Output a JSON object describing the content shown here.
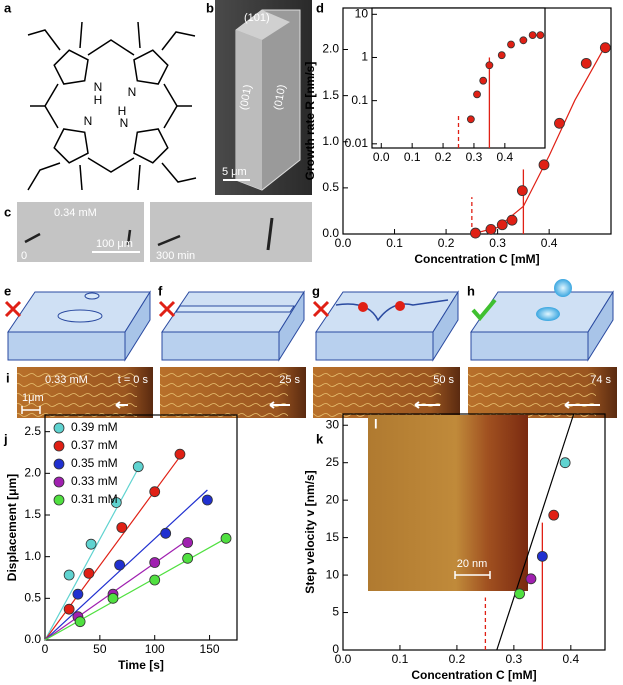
{
  "panel_labels": [
    "a",
    "b",
    "c",
    "d",
    "e",
    "f",
    "g",
    "h",
    "i",
    "j",
    "k",
    "l"
  ],
  "molecule": {
    "atoms": [
      "N",
      "H",
      "N",
      "N",
      "H",
      "N"
    ]
  },
  "sem_image": {
    "facets": [
      "(101)",
      "(001)",
      "(010)"
    ],
    "scale_bar": "5 μm"
  },
  "optical_images": {
    "concentration": "0.34 mM",
    "time_start": "0",
    "scale_bar": "100 μm",
    "time_end": "300 min"
  },
  "afm_series": {
    "concentration": "0.33 mM",
    "times": [
      "t = 0 s",
      "25 s",
      "50 s",
      "74 s"
    ],
    "scale_bar": "1μm"
  },
  "afm_inset": {
    "scale_bar": "20 nm"
  },
  "chart_data": [
    {
      "type": "scatter",
      "x_label": "Concentration C [mM]",
      "y_label": "Growth rate R [nm/s]",
      "xlim": [
        0,
        0.52
      ],
      "xticks": [
        {
          "value": 0,
          "label": "0.0"
        },
        0.1,
        0.2,
        0.3,
        0.4
      ],
      "ylim": [
        0,
        2.45
      ],
      "yticks": [
        {
          "value": 0,
          "label": "0.0"
        },
        0.5,
        {
          "value": 1,
          "label": "1.0"
        },
        1.5,
        {
          "value": 2,
          "label": "2.0"
        }
      ],
      "series": [
        {
          "color": "#e02015",
          "x": [
            0.257,
            0.287,
            0.309,
            0.328,
            0.348,
            0.39,
            0.42,
            0.472,
            0.509
          ],
          "values": [
            0.01,
            0.05,
            0.1,
            0.15,
            0.47,
            0.75,
            1.2,
            1.85,
            2.02
          ],
          "fit_x": [
            0.25,
            0.3,
            0.35,
            0.4,
            0.45,
            0.51
          ],
          "fit_values": [
            0,
            0.07,
            0.3,
            0.85,
            1.45,
            2.05
          ]
        }
      ],
      "vlines": [
        {
          "x": 0.25,
          "y": 0.4,
          "dashed": true,
          "color": "#e02015"
        },
        {
          "x": 0.35,
          "y": 0.7,
          "dashed": false,
          "color": "#e02015"
        }
      ]
    },
    {
      "type": "scatter",
      "log_y": true,
      "xlim": [
        -0.03,
        0.53
      ],
      "xticks": [
        {
          "value": 0,
          "label": "0.0"
        },
        0.1,
        0.2,
        0.3,
        0.4
      ],
      "ylim": [
        0.008,
        14
      ],
      "yticks": [
        0.01,
        0.1,
        1,
        10
      ],
      "series": [
        {
          "color": "#e02015",
          "x": [
            0.29,
            0.31,
            0.33,
            0.35,
            0.39,
            0.42,
            0.46,
            0.49,
            0.515
          ],
          "values": [
            0.037,
            0.14,
            0.29,
            0.66,
            1.13,
            2.0,
            2.5,
            3.3,
            3.3
          ]
        }
      ],
      "vlines": [
        {
          "x": 0.25,
          "y": 0.05,
          "dashed": true,
          "color": "#e02015"
        },
        {
          "x": 0.35,
          "y": 1,
          "dashed": false,
          "color": "#e02015"
        }
      ]
    },
    {
      "type": "line",
      "x_label": "Time [s]",
      "y_label": "Displacement [μm]",
      "legend": "upper-left",
      "xlim": [
        0,
        175
      ],
      "xticks": [
        0,
        50,
        100,
        150
      ],
      "ylim": [
        0,
        2.7
      ],
      "yticks": [
        {
          "value": 0,
          "label": "0.0"
        },
        0.5,
        {
          "value": 1,
          "label": "1.0"
        },
        1.5,
        {
          "value": 2,
          "label": "2.0"
        },
        2.5
      ],
      "series": [
        {
          "name": "0.39 mM",
          "color": "#5fd3d0",
          "x": [
            22,
            42,
            65,
            85
          ],
          "values": [
            0.78,
            1.15,
            1.65,
            2.08
          ],
          "fit_x": [
            0,
            88
          ],
          "fit_values": [
            0,
            2.13
          ]
        },
        {
          "name": "0.37 mM",
          "color": "#e02015",
          "x": [
            22,
            40,
            70,
            100,
            123
          ],
          "values": [
            0.37,
            0.8,
            1.35,
            1.78,
            2.23
          ],
          "fit_x": [
            0,
            123
          ],
          "fit_values": [
            0,
            2.2
          ]
        },
        {
          "name": "0.35 mM",
          "color": "#2030d0",
          "x": [
            30,
            68,
            110,
            148
          ],
          "values": [
            0.55,
            0.9,
            1.28,
            1.68
          ],
          "fit_x": [
            0,
            148
          ],
          "fit_values": [
            0,
            1.8
          ]
        },
        {
          "name": "0.33 mM",
          "color": "#a020b0",
          "x": [
            30,
            62,
            100,
            130
          ],
          "values": [
            0.28,
            0.55,
            0.93,
            1.17
          ],
          "fit_x": [
            0,
            130
          ],
          "fit_values": [
            0,
            1.2
          ]
        },
        {
          "name": "0.31 mM",
          "color": "#50e040",
          "x": [
            32,
            62,
            100,
            130,
            165
          ],
          "values": [
            0.22,
            0.5,
            0.72,
            0.98,
            1.22
          ],
          "fit_x": [
            0,
            165
          ],
          "fit_values": [
            0,
            1.22
          ]
        }
      ]
    },
    {
      "type": "scatter",
      "x_label": "Concentration C [mM]",
      "y_label": "Step velocity v [nm/s]",
      "xlim": [
        0,
        0.46
      ],
      "xticks": [
        {
          "value": 0,
          "label": "0.0"
        },
        0.1,
        0.2,
        0.3,
        0.4
      ],
      "ylim": [
        0,
        31.5
      ],
      "yticks": [
        0,
        5,
        10,
        15,
        20,
        25,
        30
      ],
      "series": [
        {
          "color": "#000000",
          "point_colors": [
            "#50e040",
            "#a020b0",
            "#2030d0",
            "#e02015",
            "#5fd3d0"
          ],
          "x": [
            0.31,
            0.33,
            0.35,
            0.37,
            0.39
          ],
          "values": [
            7.5,
            9.5,
            12.5,
            18,
            25
          ],
          "fit_x": [
            0.27,
            0.405
          ],
          "fit_values": [
            0,
            31.5
          ]
        }
      ],
      "vlines": [
        {
          "x": 0.25,
          "y": 7,
          "dashed": true,
          "color": "#e02015"
        },
        {
          "x": 0.35,
          "y": 17,
          "dashed": false,
          "color": "#e02015"
        }
      ]
    }
  ]
}
